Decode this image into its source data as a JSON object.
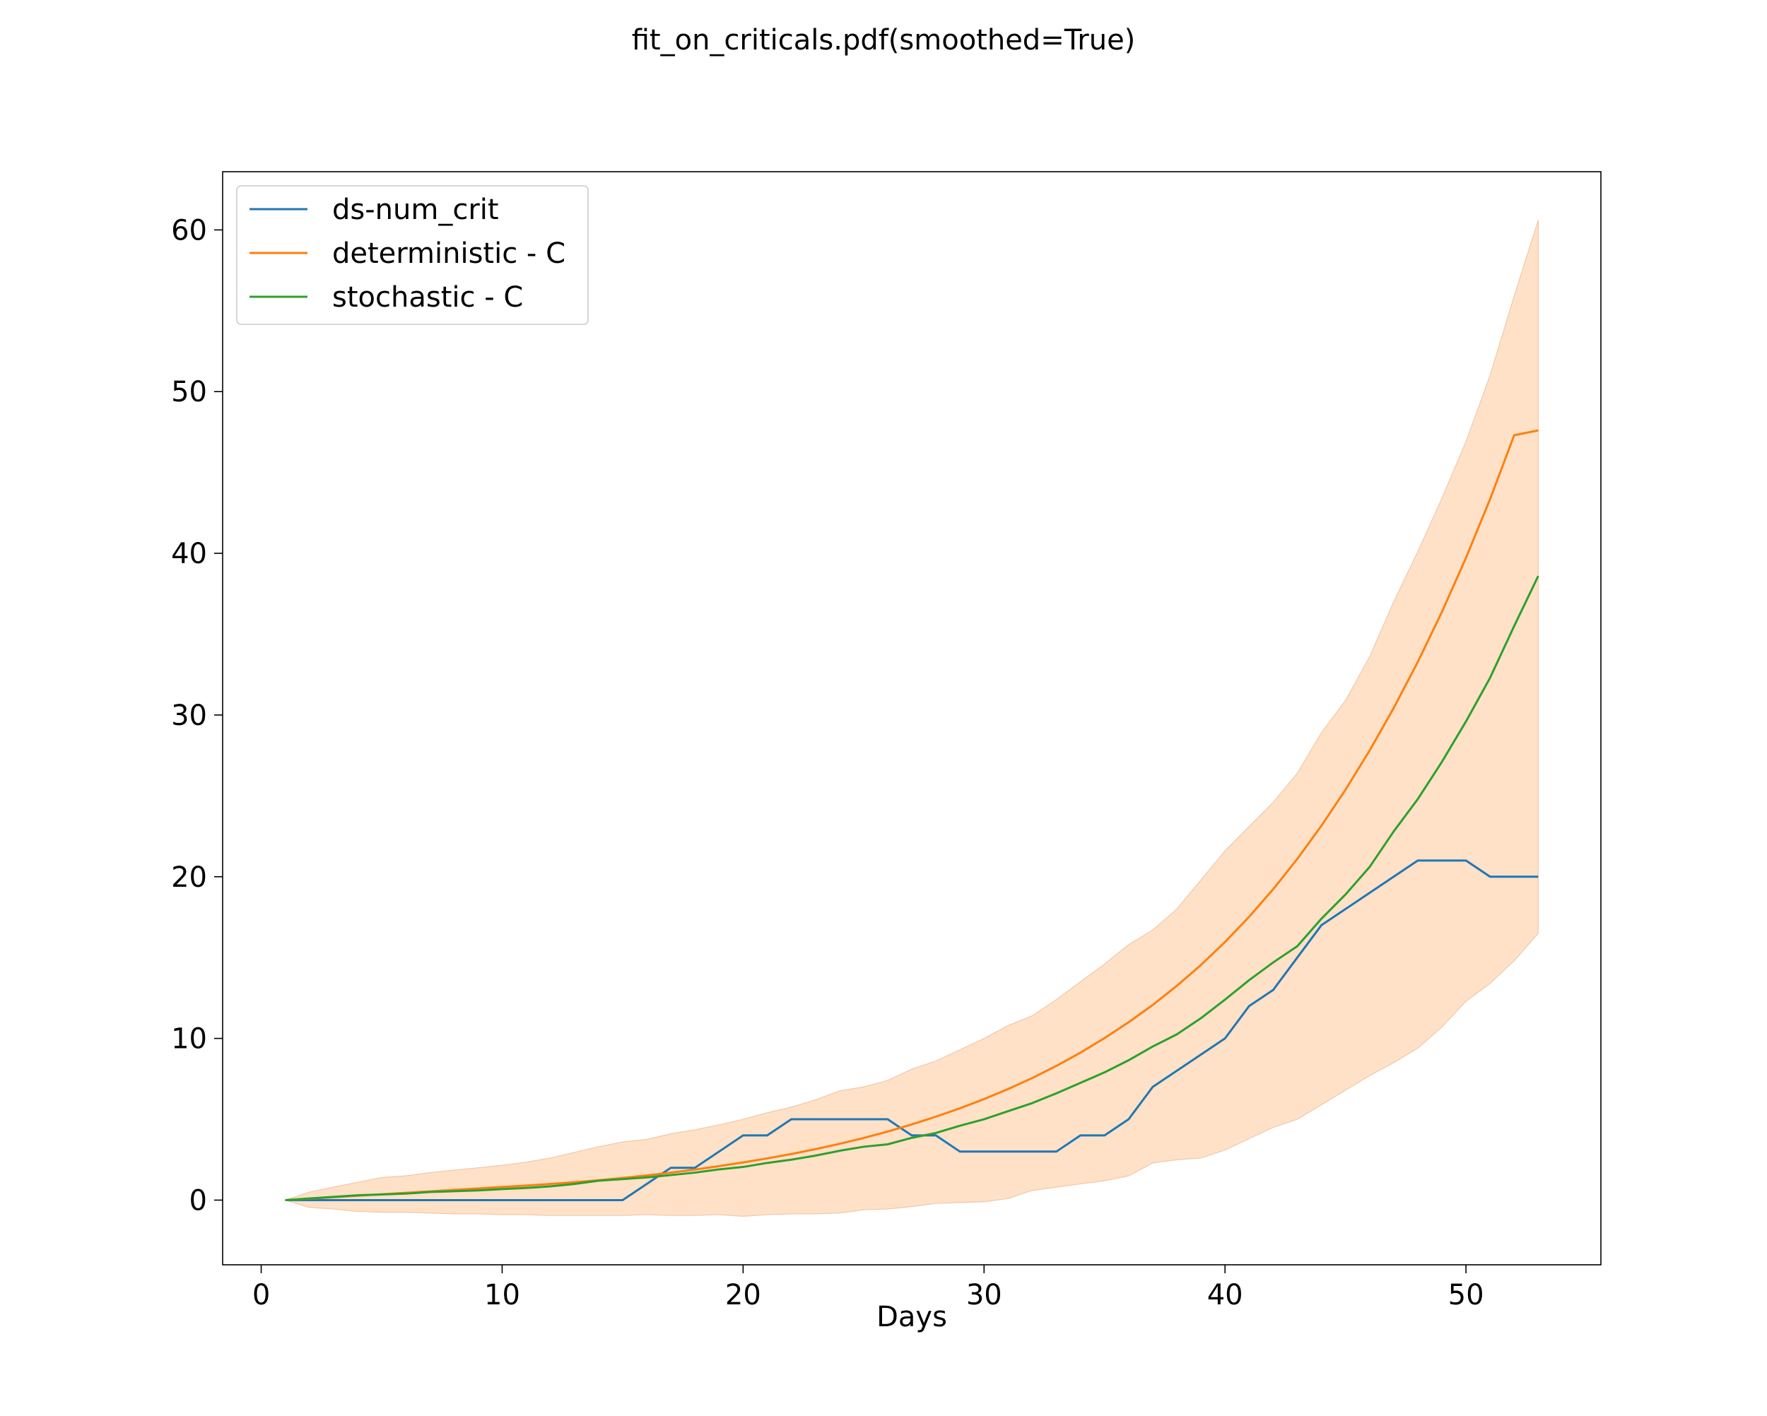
{
  "colors": {
    "observed": "#1f77b4",
    "deterministic": "#ff7f0e",
    "stochastic": "#2ca02c",
    "band": "#ffe1c8",
    "band_edge": "#f0c8a8",
    "axes": "#000000",
    "background": "#ffffff"
  },
  "chart_data": {
    "type": "line",
    "title": "fit_on_criticals.pdf(smoothed=True)",
    "xlabel": "Days",
    "ylabel": "",
    "xlim": [
      -1.6,
      55.6
    ],
    "ylim": [
      -4.0,
      63.6
    ],
    "xticks": [
      0,
      10,
      20,
      30,
      40,
      50
    ],
    "yticks": [
      0,
      10,
      20,
      30,
      40,
      50,
      60
    ],
    "grid": false,
    "legend": {
      "position": "top-left",
      "entries": [
        "ds-num_crit",
        "deterministic - C",
        "stochastic - C"
      ]
    },
    "x": [
      1,
      2,
      3,
      4,
      5,
      6,
      7,
      8,
      9,
      10,
      11,
      12,
      13,
      14,
      15,
      16,
      17,
      18,
      19,
      20,
      21,
      22,
      23,
      24,
      25,
      26,
      27,
      28,
      29,
      30,
      31,
      32,
      33,
      34,
      35,
      36,
      37,
      38,
      39,
      40,
      41,
      42,
      43,
      44,
      45,
      46,
      47,
      48,
      49,
      50,
      51,
      52,
      53
    ],
    "series": [
      {
        "name": "ds-num_crit",
        "color_key": "observed",
        "values": [
          0,
          0,
          0,
          0,
          0,
          0,
          0,
          0,
          0,
          0,
          0,
          0,
          0,
          0,
          0,
          1,
          2,
          2,
          3,
          4,
          4,
          5,
          5,
          5,
          5,
          5,
          4,
          4,
          3,
          3,
          3,
          3,
          3,
          4,
          4,
          5,
          7,
          8,
          9,
          10,
          12,
          13,
          15,
          17,
          18,
          19,
          20,
          21,
          21,
          21,
          20,
          20,
          20
        ]
      },
      {
        "name": "deterministic - C",
        "color_key": "deterministic",
        "values": [
          0,
          0.09,
          0.18,
          0.27,
          0.36,
          0.45,
          0.54,
          0.63,
          0.72,
          0.81,
          0.9,
          1.0,
          1.11,
          1.23,
          1.37,
          1.53,
          1.7,
          1.89,
          2.1,
          2.33,
          2.58,
          2.85,
          3.15,
          3.48,
          3.84,
          4.24,
          4.68,
          5.16,
          5.68,
          6.25,
          6.87,
          7.55,
          8.3,
          9.12,
          10.02,
          11.0,
          12.07,
          13.25,
          14.54,
          15.96,
          17.52,
          19.23,
          21.1,
          23.15,
          25.38,
          27.8,
          30.43,
          33.28,
          36.37,
          39.72,
          43.35,
          47.3,
          47.6
        ]
      },
      {
        "name": "stochastic - C",
        "color_key": "stochastic",
        "values": [
          0,
          0.1,
          0.2,
          0.3,
          0.35,
          0.4,
          0.5,
          0.55,
          0.6,
          0.68,
          0.75,
          0.85,
          1.0,
          1.2,
          1.3,
          1.4,
          1.55,
          1.7,
          1.9,
          2.05,
          2.3,
          2.5,
          2.75,
          3.05,
          3.3,
          3.45,
          3.85,
          4.15,
          4.6,
          5.0,
          5.5,
          6.0,
          6.6,
          7.25,
          7.9,
          8.65,
          9.5,
          10.25,
          11.25,
          12.4,
          13.6,
          14.7,
          15.7,
          17.4,
          18.9,
          20.6,
          22.8,
          24.8,
          27.1,
          29.6,
          32.3,
          35.5,
          38.6
        ]
      }
    ],
    "band": {
      "color_key": "band",
      "upper": [
        0,
        0.5,
        0.8,
        1.1,
        1.4,
        1.5,
        1.7,
        1.85,
        2.0,
        2.15,
        2.35,
        2.6,
        2.95,
        3.3,
        3.6,
        3.75,
        4.1,
        4.35,
        4.65,
        5.0,
        5.4,
        5.75,
        6.2,
        6.75,
        7.0,
        7.4,
        8.1,
        8.6,
        9.3,
        10.0,
        10.8,
        11.4,
        12.4,
        13.5,
        14.6,
        15.8,
        16.7,
        18.0,
        19.8,
        21.6,
        23.1,
        24.6,
        26.4,
        28.9,
        30.9,
        33.6,
        37.0,
        40.1,
        43.4,
        46.9,
        51.0,
        55.9,
        60.6
      ],
      "lower": [
        0,
        -0.45,
        -0.55,
        -0.7,
        -0.75,
        -0.75,
        -0.8,
        -0.85,
        -0.85,
        -0.9,
        -0.9,
        -0.95,
        -0.95,
        -0.95,
        -0.95,
        -0.9,
        -0.95,
        -0.95,
        -0.9,
        -1.0,
        -0.9,
        -0.85,
        -0.85,
        -0.8,
        -0.6,
        -0.55,
        -0.4,
        -0.2,
        -0.15,
        -0.1,
        0.1,
        0.6,
        0.8,
        1.0,
        1.2,
        1.5,
        2.3,
        2.5,
        2.6,
        3.1,
        3.8,
        4.5,
        5.0,
        5.9,
        6.8,
        7.7,
        8.5,
        9.4,
        10.7,
        12.3,
        13.4,
        14.8,
        16.5
      ]
    }
  }
}
